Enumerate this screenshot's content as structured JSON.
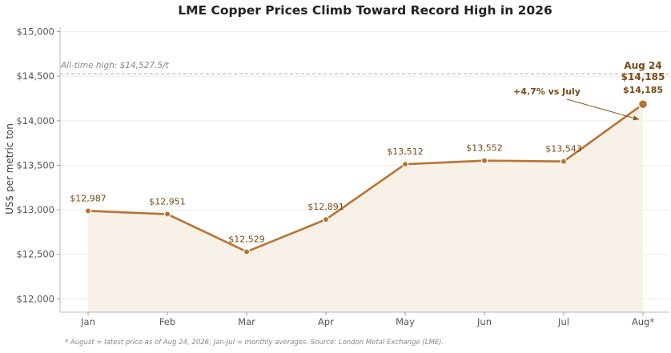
{
  "chart_data": {
    "type": "line",
    "title": "LME Copper Prices Climb Toward Record High in 2026",
    "ylabel": "US$ per metric ton",
    "xlabel": "",
    "categories": [
      "Jan",
      "Feb",
      "Mar",
      "Apr",
      "May",
      "Jun",
      "Jul",
      "Aug*"
    ],
    "values": [
      12987,
      12951,
      12529,
      12891,
      13512,
      13552,
      13543,
      14185
    ],
    "data_labels": [
      "$12,987",
      "$12,951",
      "$12,529",
      "$12,891",
      "$13,512",
      "$13,552",
      "$13,543",
      "$14,185"
    ],
    "ylim": [
      11850,
      15050
    ],
    "yticks": [
      12000,
      12500,
      13000,
      13500,
      14000,
      14500,
      15000
    ],
    "ytick_labels": [
      "$12,000",
      "$12,500",
      "$13,000",
      "$13,500",
      "$14,000",
      "$14,500",
      "$15,000"
    ],
    "reference_line": {
      "value": 14527.5,
      "label": "All-time high: $14,527.5/t"
    },
    "annotation": {
      "text": "+4.7% vs July"
    },
    "callout": {
      "line1": "Aug 24",
      "line2": "$14,185"
    },
    "footnote": "* August = latest price as of Aug 24, 2026; Jan-Jul = monthly averages. Source: London Metal Exchange (LME).",
    "grid": true,
    "colors": {
      "line": "#b87333",
      "fill": "#f7f1e8",
      "label": "#7a4a12",
      "reference": "#aaaaaa"
    }
  }
}
